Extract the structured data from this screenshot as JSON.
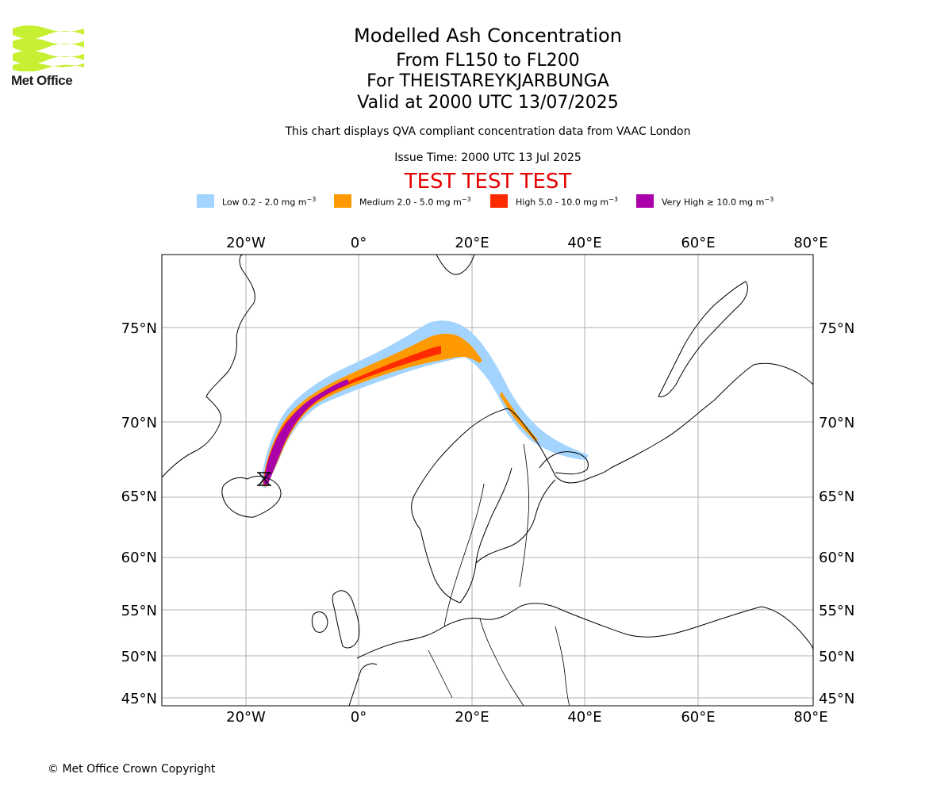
{
  "logo": {
    "text": "Met Office",
    "colors": {
      "waves": "#c8f032",
      "text": "#1d1d1b"
    }
  },
  "header": {
    "title": "Modelled Ash Concentration",
    "levels": "From FL150 to FL200",
    "volcano": "For THEISTAREYKJARBUNGA",
    "valid": "Valid at 2000 UTC 13/07/2025",
    "note": "This chart displays QVA compliant concentration data from VAAC London",
    "issue_time": "Issue Time: 2000 UTC 13 Jul 2025",
    "test_banner": "TEST TEST TEST"
  },
  "legend": [
    {
      "label": "Low 0.2 - 2.0 mg m",
      "unit_exp": "−3",
      "color": "#a3d4ff"
    },
    {
      "label": "Medium 2.0 - 5.0 mg m",
      "unit_exp": "−3",
      "color": "#ff9900"
    },
    {
      "label": "High 5.0 - 10.0 mg m",
      "unit_exp": "−3",
      "color": "#ff2a00"
    },
    {
      "label": "Very High ≥ 10.0 mg m",
      "unit_exp": "−3",
      "color": "#aa00aa"
    }
  ],
  "map": {
    "lon_labels": [
      "20°W",
      "0°",
      "20°E",
      "40°E",
      "60°E",
      "80°E"
    ],
    "lat_labels": [
      "75°N",
      "70°N",
      "65°N",
      "60°N",
      "55°N",
      "50°N",
      "45°N"
    ]
  },
  "footer": {
    "copyright": "© Met Office Crown Copyright"
  }
}
